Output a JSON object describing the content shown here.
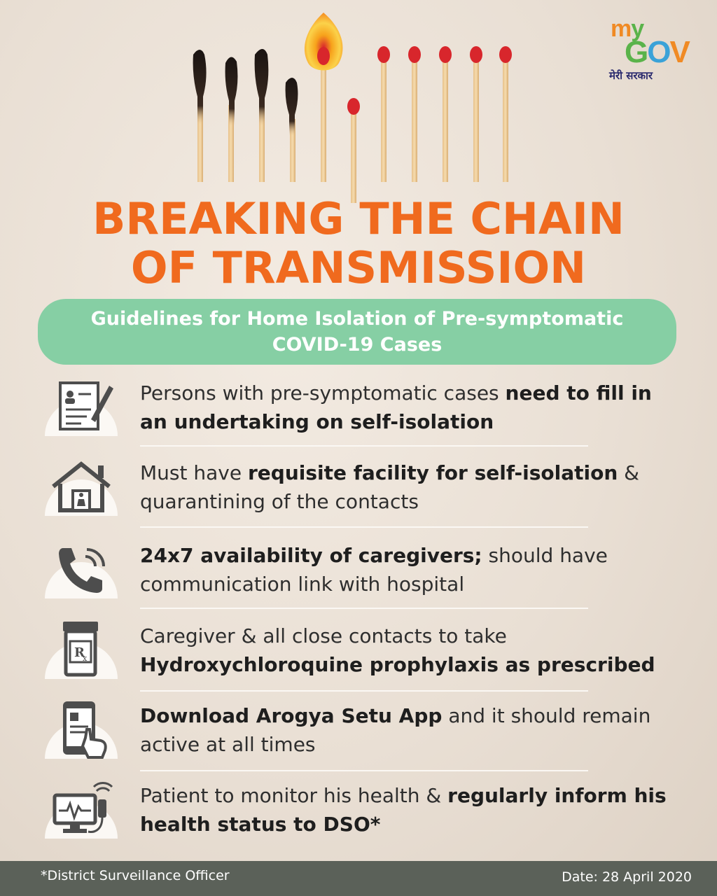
{
  "logo": {
    "my_m": "m",
    "my_y": "y",
    "gov_g": "G",
    "gov_o": "O",
    "gov_v": "V",
    "tagline": "मेरी सरकार"
  },
  "title": {
    "line1_left": "BREAKING",
    "line1_right": "THE CHAIN",
    "line2": "OF TRANSMISSION"
  },
  "banner": {
    "line1": "Guidelines for Home Isolation of Pre-symptomatic",
    "line2": "COVID-19 Cases"
  },
  "items": [
    {
      "icon": "undertaking-form-icon",
      "line1_a": "Persons with pre-symptomatic cases ",
      "line1_b": "need to fill in",
      "line2_a": "an undertaking on self-isolation",
      "line2_b": ""
    },
    {
      "icon": "home-isolation-icon",
      "line1_a": "Must have ",
      "line1_b": "requisite facility for self-isolation",
      "line1_c": " &",
      "line2_a": "quarantining of the contacts"
    },
    {
      "icon": "phone-call-icon",
      "line1_a": "24x7 availability of caregivers;",
      "line1_b": " should have",
      "line2_a": "communication link with hospital"
    },
    {
      "icon": "prescription-bottle-icon",
      "line1_a": "Caregiver & all close contacts to take",
      "line2_a": "Hydroxychloroquine prophylaxis as prescribed"
    },
    {
      "icon": "mobile-app-icon",
      "line1_a": "Download Arogya Setu App",
      "line1_b": " and it should remain",
      "line2_a": "active at all times"
    },
    {
      "icon": "health-monitor-icon",
      "line1_a": "Patient to monitor his health & ",
      "line1_b": "regularly inform his",
      "line2_a": "health status to DSO*"
    }
  ],
  "footer": {
    "note": "*District Surveillance Officer",
    "date": "Date: 28 April 2020"
  },
  "colors": {
    "title_orange": "#f06a1e",
    "banner_green": "#86cfa4",
    "footer_gray": "#5b6159",
    "match_head_red": "#d8262c"
  }
}
